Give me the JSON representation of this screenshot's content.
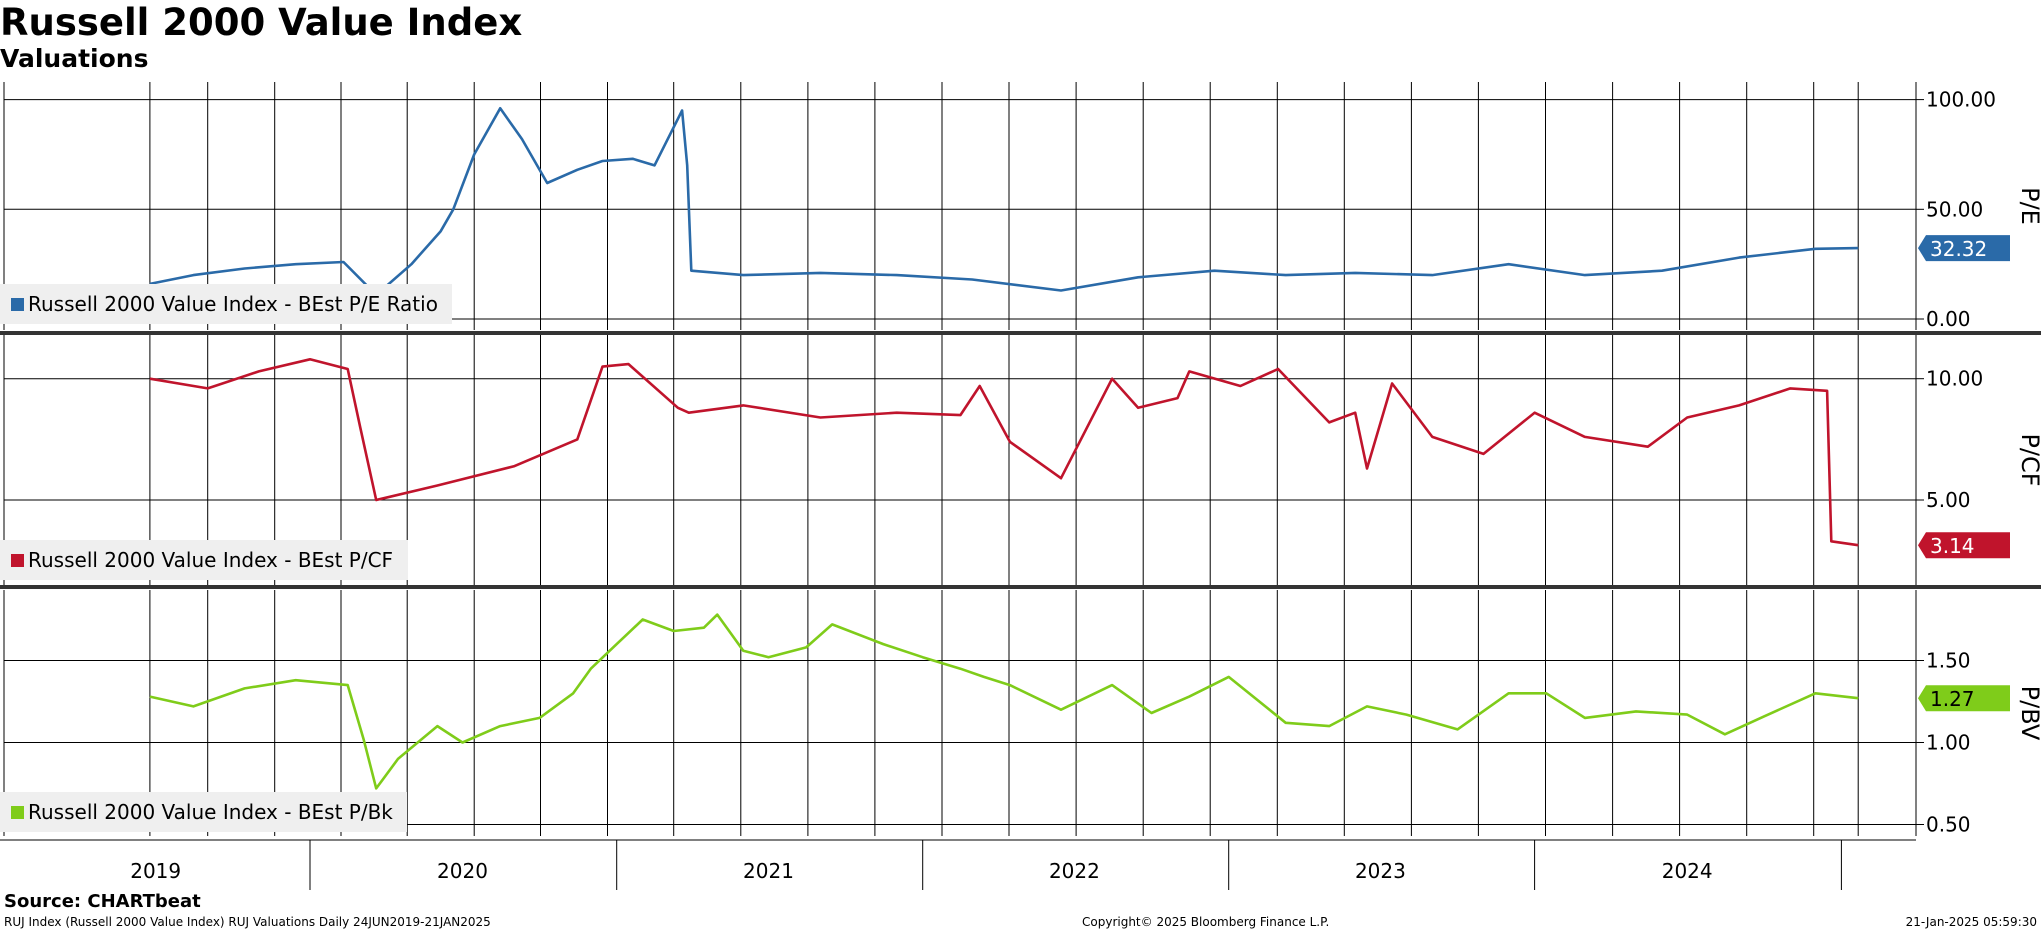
{
  "title": "Russell 2000 Value Index",
  "subtitle": "Valuations",
  "source": "Source: CHARTbeat",
  "footer": {
    "left": "RUJ Index (Russell 2000 Value Index) RUJ Valuations  Daily 24JUN2019-21JAN2025",
    "center": "Copyright© 2025 Bloomberg Finance L.P.",
    "right": "21-Jan-2025 05:59:30"
  },
  "colors": {
    "pe": "#2a6aa8",
    "pcf": "#c0142c",
    "pbv": "#7fcc1a",
    "grid": "#000000",
    "divider": "#333333"
  },
  "chart_data": [
    {
      "type": "line",
      "axis_side": "right",
      "ylabel": "P/E",
      "yticks": [
        "100.00",
        "50.00",
        "0.00"
      ],
      "ylim": [
        -5,
        108
      ],
      "last_value_label": "32.32",
      "legend": "Russell 2000 Value Index - BEst P/E Ratio",
      "legend_position": "bottom-left",
      "grid": true,
      "series": [
        {
          "name": "Russell 2000 Value Index - BEst P/E Ratio",
          "x": [
            "2019-06-24",
            "2019-08-15",
            "2019-10-15",
            "2019-12-15",
            "2020-02-10",
            "2020-03-20",
            "2020-05-01",
            "2020-06-05",
            "2020-06-20",
            "2020-07-15",
            "2020-08-15",
            "2020-09-10",
            "2020-10-10",
            "2020-11-15",
            "2020-12-15",
            "2021-01-20",
            "2021-02-15",
            "2021-03-20",
            "2021-03-26",
            "2021-03-31",
            "2021-06-01",
            "2021-09-01",
            "2021-12-01",
            "2022-03-01",
            "2022-06-15",
            "2022-09-15",
            "2022-12-15",
            "2023-03-10",
            "2023-06-01",
            "2023-09-01",
            "2023-12-01",
            "2024-03-01",
            "2024-06-01",
            "2024-09-01",
            "2024-12-01",
            "2025-01-21"
          ],
          "values": [
            16,
            20,
            23,
            25,
            26,
            11,
            25,
            40,
            50,
            75,
            96,
            82,
            62,
            68,
            72,
            73,
            70,
            95,
            70,
            22,
            20,
            21,
            20,
            18,
            13,
            19,
            22,
            20,
            21,
            20,
            25,
            20,
            22,
            28,
            32,
            32.32
          ]
        }
      ]
    },
    {
      "type": "line",
      "axis_side": "right",
      "ylabel": "P/CF",
      "yticks": [
        "10.00",
        "5.00"
      ],
      "ylim": [
        1.5,
        11.8
      ],
      "last_value_label": "3.14",
      "legend": "Russell 2000 Value Index - BEst P/CF",
      "legend_position": "bottom-left",
      "grid": true,
      "series": [
        {
          "name": "Russell 2000 Value Index - BEst P/CF",
          "x": [
            "2019-06-24",
            "2019-09-01",
            "2019-11-01",
            "2020-01-01",
            "2020-02-15",
            "2020-03-01",
            "2020-03-20",
            "2020-06-01",
            "2020-09-01",
            "2020-11-15",
            "2020-12-15",
            "2021-01-15",
            "2021-03-15",
            "2021-03-28",
            "2021-06-01",
            "2021-09-01",
            "2021-12-01",
            "2022-02-15",
            "2022-03-10",
            "2022-04-15",
            "2022-06-15",
            "2022-08-15",
            "2022-09-15",
            "2022-11-01",
            "2022-11-15",
            "2023-01-15",
            "2023-03-01",
            "2023-05-01",
            "2023-06-01",
            "2023-06-15",
            "2023-07-15",
            "2023-09-01",
            "2023-11-01",
            "2024-01-01",
            "2024-03-01",
            "2024-05-15",
            "2024-07-01",
            "2024-09-01",
            "2024-11-01",
            "2024-12-15",
            "2024-12-20",
            "2025-01-21"
          ],
          "values": [
            10,
            9.6,
            10.3,
            10.8,
            10.4,
            8.0,
            5.0,
            5.6,
            6.4,
            7.5,
            10.5,
            10.6,
            8.8,
            8.6,
            8.9,
            8.4,
            8.6,
            8.5,
            9.7,
            7.4,
            5.9,
            10.0,
            8.8,
            9.2,
            10.3,
            9.7,
            10.4,
            8.2,
            8.6,
            6.3,
            9.8,
            7.6,
            6.9,
            8.6,
            7.6,
            7.2,
            8.4,
            8.9,
            9.6,
            9.5,
            3.3,
            3.14
          ]
        }
      ]
    },
    {
      "type": "line",
      "axis_side": "right",
      "ylabel": "P/BV",
      "yticks": [
        "1.50",
        "1.00",
        "0.50"
      ],
      "ylim": [
        0.43,
        1.93
      ],
      "last_value_label": "1.27",
      "legend": "Russell 2000 Value Index - BEst P/Bk",
      "legend_position": "bottom-left",
      "grid": true,
      "series": [
        {
          "name": "Russell 2000 Value Index - BEst P/Bk",
          "x": [
            "2019-06-24",
            "2019-08-15",
            "2019-10-15",
            "2019-12-15",
            "2020-02-15",
            "2020-03-05",
            "2020-03-20",
            "2020-04-15",
            "2020-06-01",
            "2020-07-01",
            "2020-08-15",
            "2020-10-01",
            "2020-11-10",
            "2020-12-01",
            "2021-01-01",
            "2021-02-01",
            "2021-03-10",
            "2021-04-15",
            "2021-05-01",
            "2021-06-01",
            "2021-07-01",
            "2021-08-15",
            "2021-09-15",
            "2021-11-15",
            "2022-01-01",
            "2022-02-15",
            "2022-03-15",
            "2022-04-15",
            "2022-06-15",
            "2022-08-15",
            "2022-10-01",
            "2022-11-15",
            "2023-01-01",
            "2023-03-10",
            "2023-05-01",
            "2023-06-15",
            "2023-08-01",
            "2023-10-01",
            "2023-12-01",
            "2024-01-15",
            "2024-03-01",
            "2024-05-01",
            "2024-07-01",
            "2024-08-15",
            "2024-10-01",
            "2024-12-01",
            "2025-01-21"
          ],
          "values": [
            1.28,
            1.22,
            1.33,
            1.38,
            1.35,
            1.02,
            0.72,
            0.9,
            1.1,
            1.0,
            1.1,
            1.15,
            1.3,
            1.45,
            1.6,
            1.75,
            1.68,
            1.7,
            1.78,
            1.56,
            1.52,
            1.58,
            1.72,
            1.6,
            1.52,
            1.45,
            1.4,
            1.35,
            1.2,
            1.35,
            1.18,
            1.28,
            1.4,
            1.12,
            1.1,
            1.22,
            1.17,
            1.08,
            1.3,
            1.3,
            1.15,
            1.19,
            1.17,
            1.05,
            1.16,
            1.3,
            1.27
          ]
        }
      ]
    }
  ],
  "x_axis": {
    "type": "date",
    "range": [
      "2019-01-01",
      "2025-03-31"
    ],
    "year_labels": [
      "2019",
      "2020",
      "2021",
      "2022",
      "2023",
      "2024"
    ],
    "label_dates": [
      "2019-07-01",
      "2020-07-01",
      "2021-07-01",
      "2022-07-01",
      "2023-07-01",
      "2024-07-01"
    ],
    "year_starts": [
      "2020-01-01",
      "2021-01-01",
      "2022-01-01",
      "2023-01-01",
      "2024-01-01",
      "2025-01-01"
    ],
    "grid_dates": [
      "2019-01-01",
      "2019-06-24",
      "2019-09-01",
      "2019-11-20",
      "2020-02-07",
      "2020-04-26",
      "2020-07-15",
      "2020-10-02",
      "2020-12-21",
      "2021-03-10",
      "2021-05-29",
      "2021-08-17",
      "2021-11-05",
      "2022-01-24",
      "2022-04-14",
      "2022-07-03",
      "2022-09-21",
      "2022-12-10",
      "2023-02-28",
      "2023-05-19",
      "2023-08-07",
      "2023-10-26",
      "2024-01-14",
      "2024-04-03",
      "2024-06-22",
      "2024-09-10",
      "2024-11-29",
      "2025-01-21"
    ]
  }
}
